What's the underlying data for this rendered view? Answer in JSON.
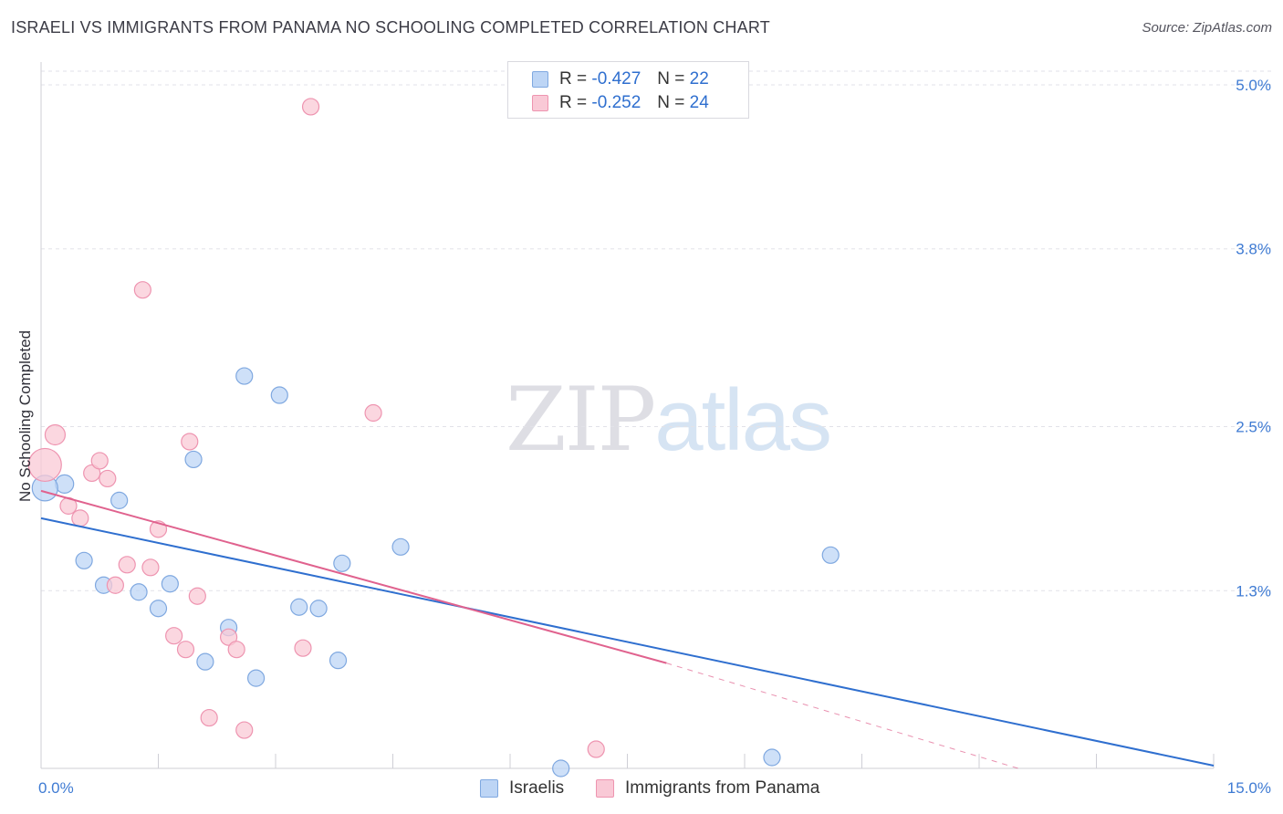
{
  "title": "ISRAELI VS IMMIGRANTS FROM PANAMA NO SCHOOLING COMPLETED CORRELATION CHART",
  "source": "Source: ZipAtlas.com",
  "watermark": {
    "zip": "ZIP",
    "atlas": "atlas"
  },
  "legend": {
    "rows": [
      {
        "r_label": "R =",
        "r_value": "-0.427",
        "n_label": "N =",
        "n_value": "22",
        "fill": "#bdd5f5",
        "stroke": "#7fa8e0"
      },
      {
        "r_label": "R =",
        "r_value": "-0.252",
        "n_label": "N =",
        "n_value": "24",
        "fill": "#f9c9d6",
        "stroke": "#ee94b0"
      }
    ]
  },
  "chart_data": {
    "type": "scatter",
    "title": "ISRAELI VS IMMIGRANTS FROM PANAMA NO SCHOOLING COMPLETED CORRELATION CHART",
    "xlabel": "",
    "ylabel": "No Schooling Completed",
    "xlim": [
      0,
      15
    ],
    "ylim": [
      0,
      5.1
    ],
    "x_tick_labels": [
      "0.0%",
      "15.0%"
    ],
    "y_ticks": [
      1.3,
      2.5,
      3.8,
      5.0
    ],
    "y_tick_labels": [
      "1.3%",
      "2.5%",
      "3.8%",
      "5.0%"
    ],
    "grid": true,
    "legend_position": "bottom",
    "series": [
      {
        "name": "Israelis",
        "color": "#2f6fcf",
        "fill": "#bdd5f5",
        "stroke": "#7fa8e0",
        "points": [
          {
            "x": 0.3,
            "y": 2.08,
            "s": 10
          },
          {
            "x": 1.0,
            "y": 1.96,
            "s": 9
          },
          {
            "x": 0.55,
            "y": 1.52,
            "s": 9
          },
          {
            "x": 0.8,
            "y": 1.34,
            "s": 9
          },
          {
            "x": 1.25,
            "y": 1.29,
            "s": 9
          },
          {
            "x": 1.5,
            "y": 1.17,
            "s": 9
          },
          {
            "x": 1.65,
            "y": 1.35,
            "s": 9
          },
          {
            "x": 1.95,
            "y": 2.26,
            "s": 9
          },
          {
            "x": 2.1,
            "y": 0.78,
            "s": 9
          },
          {
            "x": 2.4,
            "y": 1.03,
            "s": 9
          },
          {
            "x": 2.6,
            "y": 2.87,
            "s": 9
          },
          {
            "x": 2.75,
            "y": 0.66,
            "s": 9
          },
          {
            "x": 3.05,
            "y": 2.73,
            "s": 9
          },
          {
            "x": 3.3,
            "y": 1.18,
            "s": 9
          },
          {
            "x": 3.55,
            "y": 1.17,
            "s": 9
          },
          {
            "x": 3.8,
            "y": 0.79,
            "s": 9
          },
          {
            "x": 3.85,
            "y": 1.5,
            "s": 9
          },
          {
            "x": 4.6,
            "y": 1.62,
            "s": 9
          },
          {
            "x": 6.65,
            "y": 0.0,
            "s": 9
          },
          {
            "x": 9.35,
            "y": 0.08,
            "s": 9
          },
          {
            "x": 10.1,
            "y": 1.56,
            "s": 9
          },
          {
            "x": 0.05,
            "y": 2.05,
            "s": 14
          }
        ],
        "trend": {
          "x0": 0,
          "y0": 1.83,
          "x1": 15,
          "y1": 0.02
        }
      },
      {
        "name": "Immigrants from Panama",
        "color": "#e0628e",
        "fill": "#f9c9d6",
        "stroke": "#ee94b0",
        "points": [
          {
            "x": 0.05,
            "y": 2.22,
            "s": 18
          },
          {
            "x": 0.18,
            "y": 2.44,
            "s": 11
          },
          {
            "x": 0.35,
            "y": 1.92,
            "s": 9
          },
          {
            "x": 0.5,
            "y": 1.83,
            "s": 9
          },
          {
            "x": 0.65,
            "y": 2.16,
            "s": 9
          },
          {
            "x": 0.75,
            "y": 2.25,
            "s": 9
          },
          {
            "x": 0.85,
            "y": 2.12,
            "s": 9
          },
          {
            "x": 0.95,
            "y": 1.34,
            "s": 9
          },
          {
            "x": 1.1,
            "y": 1.49,
            "s": 9
          },
          {
            "x": 1.3,
            "y": 3.5,
            "s": 9
          },
          {
            "x": 1.4,
            "y": 1.47,
            "s": 9
          },
          {
            "x": 1.5,
            "y": 1.75,
            "s": 9
          },
          {
            "x": 1.7,
            "y": 0.97,
            "s": 9
          },
          {
            "x": 1.85,
            "y": 0.87,
            "s": 9
          },
          {
            "x": 1.9,
            "y": 2.39,
            "s": 9
          },
          {
            "x": 2.0,
            "y": 1.26,
            "s": 9
          },
          {
            "x": 2.15,
            "y": 0.37,
            "s": 9
          },
          {
            "x": 2.4,
            "y": 0.96,
            "s": 9
          },
          {
            "x": 2.5,
            "y": 0.87,
            "s": 9
          },
          {
            "x": 2.6,
            "y": 0.28,
            "s": 9
          },
          {
            "x": 3.35,
            "y": 0.88,
            "s": 9
          },
          {
            "x": 3.45,
            "y": 4.84,
            "s": 9
          },
          {
            "x": 4.25,
            "y": 2.6,
            "s": 9
          },
          {
            "x": 7.1,
            "y": 0.14,
            "s": 9
          }
        ],
        "trend": {
          "x0": 0,
          "y0": 2.03,
          "x1": 8.0,
          "y1": 0.77
        },
        "trend_dashed": {
          "x0": 8.0,
          "y0": 0.77,
          "x1": 12.5,
          "y1": 0.0
        }
      }
    ]
  }
}
